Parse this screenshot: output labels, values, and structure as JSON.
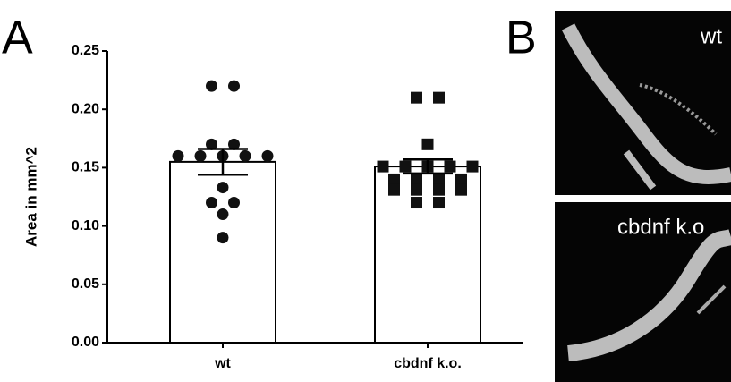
{
  "chart_data": {
    "type": "bar",
    "panel_labels": [
      "A",
      "B"
    ],
    "ylabel": "Area in mm^2",
    "categories": [
      "wt",
      "cbdnf k.o."
    ],
    "values": [
      0.155,
      0.151
    ],
    "errors": [
      0.011,
      0.006
    ],
    "color": "#ffffff",
    "points": [
      [
        0.22,
        0.22,
        0.17,
        0.17,
        0.16,
        0.16,
        0.16,
        0.16,
        0.16,
        0.133,
        0.12,
        0.12,
        0.11,
        0.09
      ],
      [
        0.21,
        0.21,
        0.17,
        0.151,
        0.151,
        0.151,
        0.151,
        0.151,
        0.14,
        0.14,
        0.14,
        0.14,
        0.131,
        0.131,
        0.131,
        0.131,
        0.12,
        0.12
      ]
    ],
    "markers": [
      "circle",
      "square"
    ],
    "ylim": [
      0,
      0.25
    ],
    "yticks": [
      {
        "value": 0,
        "label": "0.00"
      },
      0.05,
      {
        "value": 0.1,
        "label": "0.10"
      },
      0.15,
      {
        "value": 0.2,
        "label": "0.20"
      },
      0.25
    ],
    "image_labels": [
      "wt",
      "cbdnf k.o"
    ]
  }
}
